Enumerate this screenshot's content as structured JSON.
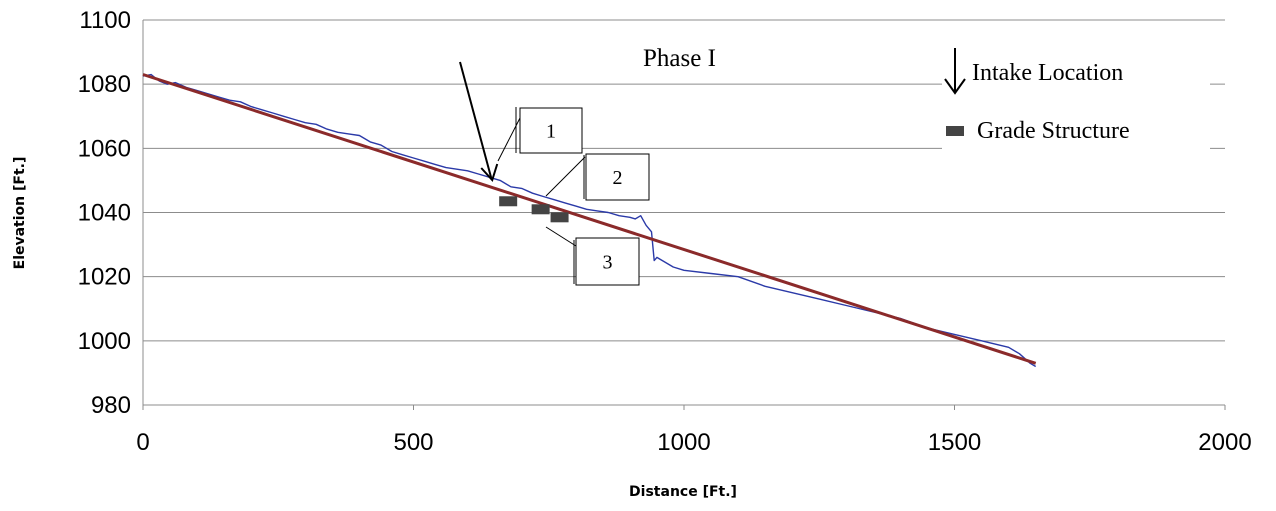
{
  "chart_data": {
    "type": "line",
    "title": "",
    "xlabel": "Distance [Ft.]",
    "ylabel": "Elevation [Ft.]",
    "xlim": [
      0,
      2000
    ],
    "ylim": [
      980,
      1100
    ],
    "x_ticks": [
      "0",
      "500",
      "1000",
      "1500",
      "2000"
    ],
    "y_ticks": [
      "980",
      "1000",
      "1020",
      "1040",
      "1060",
      "1080",
      "1100"
    ],
    "grid": "horizontal",
    "annotation_text": "Phase I",
    "legend": [
      {
        "label": "Intake Location",
        "symbol": "down-arrow-icon"
      },
      {
        "label": "Grade Structure",
        "symbol": "square-marker"
      }
    ],
    "series": [
      {
        "color": "#2b3aa8",
        "x": [
          0,
          15,
          30,
          45,
          60,
          80,
          100,
          120,
          140,
          160,
          180,
          200,
          220,
          240,
          260,
          280,
          300,
          320,
          340,
          360,
          380,
          400,
          420,
          440,
          460,
          480,
          500,
          520,
          540,
          560,
          580,
          600,
          620,
          640,
          660,
          680,
          700,
          720,
          740,
          760,
          780,
          800,
          820,
          840,
          860,
          880,
          900,
          910,
          920,
          930,
          940,
          945,
          950,
          980,
          1000,
          1050,
          1100,
          1150,
          1200,
          1250,
          1300,
          1350,
          1400,
          1450,
          1500,
          1550,
          1600,
          1620,
          1640,
          1650
        ],
        "y": [
          1082.5,
          1083,
          1081,
          1080,
          1080.5,
          1079,
          1078,
          1077,
          1076,
          1075,
          1074.5,
          1073,
          1072,
          1071,
          1070,
          1069,
          1068,
          1067.5,
          1066,
          1065,
          1064.5,
          1064,
          1062,
          1061,
          1059,
          1058,
          1057,
          1056,
          1055,
          1054,
          1053.5,
          1053,
          1052,
          1051,
          1050,
          1048,
          1047.5,
          1046,
          1045,
          1044,
          1043,
          1042,
          1041,
          1040.5,
          1040,
          1039,
          1038.5,
          1038,
          1039,
          1036,
          1034,
          1025,
          1026,
          1023,
          1022,
          1021,
          1020,
          1017,
          1015,
          1013,
          1011,
          1009,
          1007,
          1004,
          1002,
          1000,
          998,
          996,
          993,
          992
        ]
      },
      {
        "color": "#8b2a2a",
        "x": [
          0,
          1650
        ],
        "y": [
          1083,
          993
        ]
      }
    ],
    "intake_location": {
      "x": 640,
      "y": 1052
    },
    "grade_structures": [
      {
        "label": "1",
        "x": 675,
        "y": 1043.5
      },
      {
        "label": "2",
        "x": 735,
        "y": 1041
      },
      {
        "label": "3",
        "x": 770,
        "y": 1038.5
      }
    ]
  }
}
